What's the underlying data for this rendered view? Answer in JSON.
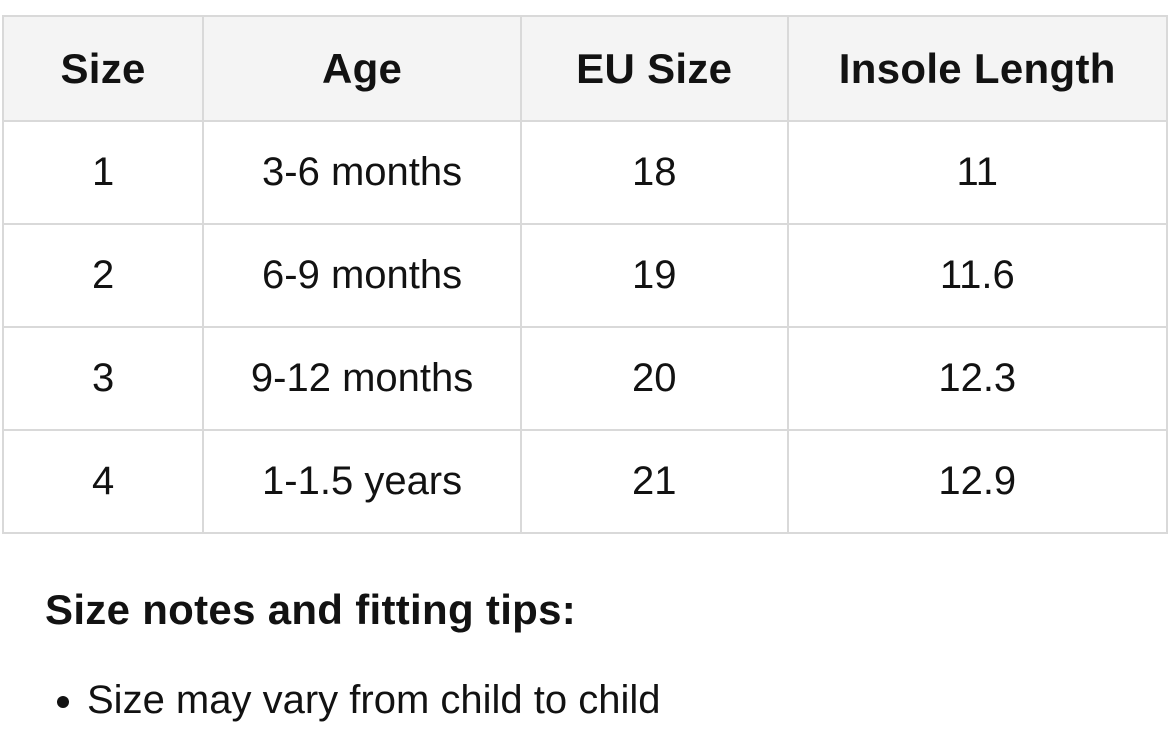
{
  "table": {
    "headers": [
      "Size",
      "Age",
      "EU Size",
      "Insole Length"
    ],
    "rows": [
      [
        "1",
        "3-6 months",
        "18",
        "11"
      ],
      [
        "2",
        "6-9 months",
        "19",
        "11.6"
      ],
      [
        "3",
        "9-12 months",
        "20",
        "12.3"
      ],
      [
        "4",
        "1-1.5 years",
        "21",
        "12.9"
      ]
    ]
  },
  "notes": {
    "heading": "Size notes and fitting tips:",
    "items": [
      "Size may vary from child to child"
    ]
  },
  "colors": {
    "header_bg": "#f4f4f4",
    "border": "#d9d9d9",
    "text": "#121212"
  }
}
